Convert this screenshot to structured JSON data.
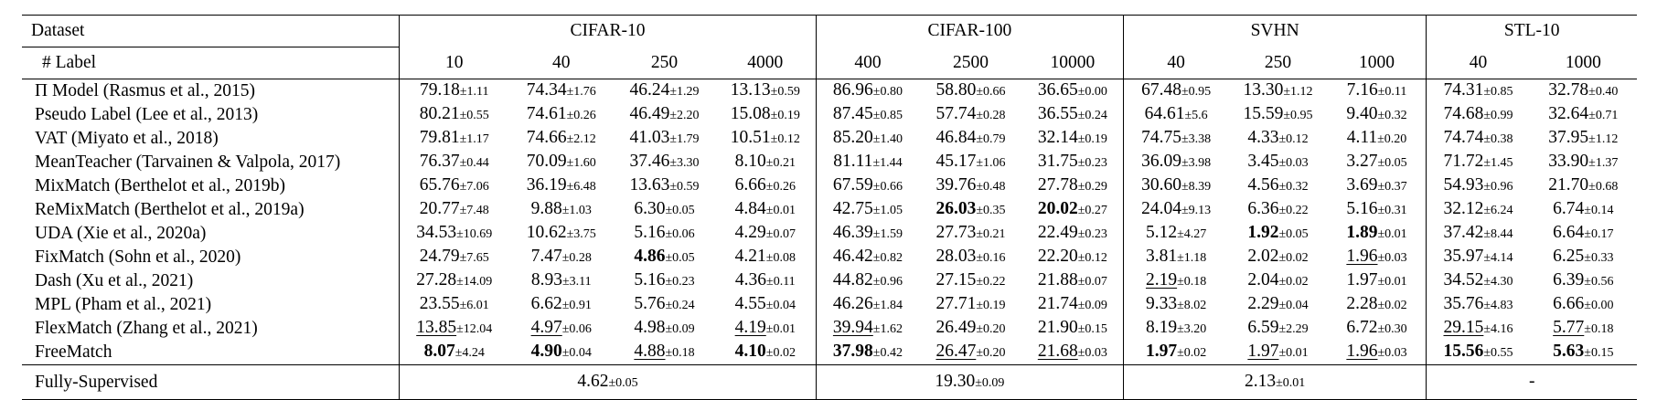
{
  "table": {
    "header_dataset": "Dataset",
    "header_label": "# Label",
    "datasets": [
      {
        "name": "CIFAR-10",
        "labels": [
          "10",
          "40",
          "250",
          "4000"
        ],
        "fully_supervised": {
          "v": "4.62",
          "s": "±0.05"
        }
      },
      {
        "name": "CIFAR-100",
        "labels": [
          "400",
          "2500",
          "10000"
        ],
        "fully_supervised": {
          "v": "19.30",
          "s": "±0.09"
        }
      },
      {
        "name": "SVHN",
        "labels": [
          "40",
          "250",
          "1000"
        ],
        "fully_supervised": {
          "v": "2.13",
          "s": "±0.01"
        }
      },
      {
        "name": "STL-10",
        "labels": [
          "40",
          "1000"
        ],
        "fully_supervised": {
          "v": "-",
          "s": ""
        }
      }
    ],
    "fully_supervised_label": "Fully-Supervised",
    "rows": [
      {
        "method": "Π Model (Rasmus et al., 2015)",
        "cells": [
          {
            "v": "79.18",
            "s": "±1.11"
          },
          {
            "v": "74.34",
            "s": "±1.76"
          },
          {
            "v": "46.24",
            "s": "±1.29"
          },
          {
            "v": "13.13",
            "s": "±0.59"
          },
          {
            "v": "86.96",
            "s": "±0.80"
          },
          {
            "v": "58.80",
            "s": "±0.66"
          },
          {
            "v": "36.65",
            "s": "±0.00"
          },
          {
            "v": "67.48",
            "s": "±0.95"
          },
          {
            "v": "13.30",
            "s": "±1.12"
          },
          {
            "v": "7.16",
            "s": "±0.11"
          },
          {
            "v": "74.31",
            "s": "±0.85"
          },
          {
            "v": "32.78",
            "s": "±0.40"
          }
        ]
      },
      {
        "method": "Pseudo Label (Lee et al., 2013)",
        "cells": [
          {
            "v": "80.21",
            "s": "±0.55"
          },
          {
            "v": "74.61",
            "s": "±0.26"
          },
          {
            "v": "46.49",
            "s": "±2.20"
          },
          {
            "v": "15.08",
            "s": "±0.19"
          },
          {
            "v": "87.45",
            "s": "±0.85"
          },
          {
            "v": "57.74",
            "s": "±0.28"
          },
          {
            "v": "36.55",
            "s": "±0.24"
          },
          {
            "v": "64.61",
            "s": "±5.6"
          },
          {
            "v": "15.59",
            "s": "±0.95"
          },
          {
            "v": "9.40",
            "s": "±0.32"
          },
          {
            "v": "74.68",
            "s": "±0.99"
          },
          {
            "v": "32.64",
            "s": "±0.71"
          }
        ]
      },
      {
        "method": "VAT (Miyato et al., 2018)",
        "cells": [
          {
            "v": "79.81",
            "s": "±1.17"
          },
          {
            "v": "74.66",
            "s": "±2.12"
          },
          {
            "v": "41.03",
            "s": "±1.79"
          },
          {
            "v": "10.51",
            "s": "±0.12"
          },
          {
            "v": "85.20",
            "s": "±1.40"
          },
          {
            "v": "46.84",
            "s": "±0.79"
          },
          {
            "v": "32.14",
            "s": "±0.19"
          },
          {
            "v": "74.75",
            "s": "±3.38"
          },
          {
            "v": "4.33",
            "s": "±0.12"
          },
          {
            "v": "4.11",
            "s": "±0.20"
          },
          {
            "v": "74.74",
            "s": "±0.38"
          },
          {
            "v": "37.95",
            "s": "±1.12"
          }
        ]
      },
      {
        "method": "MeanTeacher (Tarvainen & Valpola, 2017)",
        "cells": [
          {
            "v": "76.37",
            "s": "±0.44"
          },
          {
            "v": "70.09",
            "s": "±1.60"
          },
          {
            "v": "37.46",
            "s": "±3.30"
          },
          {
            "v": "8.10",
            "s": "±0.21"
          },
          {
            "v": "81.11",
            "s": "±1.44"
          },
          {
            "v": "45.17",
            "s": "±1.06"
          },
          {
            "v": "31.75",
            "s": "±0.23"
          },
          {
            "v": "36.09",
            "s": "±3.98"
          },
          {
            "v": "3.45",
            "s": "±0.03"
          },
          {
            "v": "3.27",
            "s": "±0.05"
          },
          {
            "v": "71.72",
            "s": "±1.45"
          },
          {
            "v": "33.90",
            "s": "±1.37"
          }
        ]
      },
      {
        "method": "MixMatch (Berthelot et al., 2019b)",
        "cells": [
          {
            "v": "65.76",
            "s": "±7.06"
          },
          {
            "v": "36.19",
            "s": "±6.48"
          },
          {
            "v": "13.63",
            "s": "±0.59"
          },
          {
            "v": "6.66",
            "s": "±0.26"
          },
          {
            "v": "67.59",
            "s": "±0.66"
          },
          {
            "v": "39.76",
            "s": "±0.48"
          },
          {
            "v": "27.78",
            "s": "±0.29"
          },
          {
            "v": "30.60",
            "s": "±8.39"
          },
          {
            "v": "4.56",
            "s": "±0.32"
          },
          {
            "v": "3.69",
            "s": "±0.37"
          },
          {
            "v": "54.93",
            "s": "±0.96"
          },
          {
            "v": "21.70",
            "s": "±0.68"
          }
        ]
      },
      {
        "method": "ReMixMatch (Berthelot et al., 2019a)",
        "cells": [
          {
            "v": "20.77",
            "s": "±7.48"
          },
          {
            "v": "9.88",
            "s": "±1.03"
          },
          {
            "v": "6.30",
            "s": "±0.05"
          },
          {
            "v": "4.84",
            "s": "±0.01"
          },
          {
            "v": "42.75",
            "s": "±1.05"
          },
          {
            "v": "26.03",
            "s": "±0.35",
            "b": true
          },
          {
            "v": "20.02",
            "s": "±0.27",
            "b": true
          },
          {
            "v": "24.04",
            "s": "±9.13"
          },
          {
            "v": "6.36",
            "s": "±0.22"
          },
          {
            "v": "5.16",
            "s": "±0.31"
          },
          {
            "v": "32.12",
            "s": "±6.24"
          },
          {
            "v": "6.74",
            "s": "±0.14"
          }
        ]
      },
      {
        "method": "UDA (Xie et al., 2020a)",
        "cells": [
          {
            "v": "34.53",
            "s": "±10.69"
          },
          {
            "v": "10.62",
            "s": "±3.75"
          },
          {
            "v": "5.16",
            "s": "±0.06"
          },
          {
            "v": "4.29",
            "s": "±0.07"
          },
          {
            "v": "46.39",
            "s": "±1.59"
          },
          {
            "v": "27.73",
            "s": "±0.21"
          },
          {
            "v": "22.49",
            "s": "±0.23"
          },
          {
            "v": "5.12",
            "s": "±4.27"
          },
          {
            "v": "1.92",
            "s": "±0.05",
            "b": true
          },
          {
            "v": "1.89",
            "s": "±0.01",
            "b": true
          },
          {
            "v": "37.42",
            "s": "±8.44"
          },
          {
            "v": "6.64",
            "s": "±0.17"
          }
        ]
      },
      {
        "method": "FixMatch (Sohn et al., 2020)",
        "cells": [
          {
            "v": "24.79",
            "s": "±7.65"
          },
          {
            "v": "7.47",
            "s": "±0.28"
          },
          {
            "v": "4.86",
            "s": "±0.05",
            "b": true
          },
          {
            "v": "4.21",
            "s": "±0.08"
          },
          {
            "v": "46.42",
            "s": "±0.82"
          },
          {
            "v": "28.03",
            "s": "±0.16"
          },
          {
            "v": "22.20",
            "s": "±0.12"
          },
          {
            "v": "3.81",
            "s": "±1.18"
          },
          {
            "v": "2.02",
            "s": "±0.02"
          },
          {
            "v": "1.96",
            "s": "±0.03",
            "u": true
          },
          {
            "v": "35.97",
            "s": "±4.14"
          },
          {
            "v": "6.25",
            "s": "±0.33"
          }
        ]
      },
      {
        "method": "Dash (Xu et al., 2021)",
        "cells": [
          {
            "v": "27.28",
            "s": "±14.09"
          },
          {
            "v": "8.93",
            "s": "±3.11"
          },
          {
            "v": "5.16",
            "s": "±0.23"
          },
          {
            "v": "4.36",
            "s": "±0.11"
          },
          {
            "v": "44.82",
            "s": "±0.96"
          },
          {
            "v": "27.15",
            "s": "±0.22"
          },
          {
            "v": "21.88",
            "s": "±0.07"
          },
          {
            "v": "2.19",
            "s": "±0.18",
            "u": true
          },
          {
            "v": "2.04",
            "s": "±0.02"
          },
          {
            "v": "1.97",
            "s": "±0.01"
          },
          {
            "v": "34.52",
            "s": "±4.30"
          },
          {
            "v": "6.39",
            "s": "±0.56"
          }
        ]
      },
      {
        "method": "MPL (Pham et al., 2021)",
        "cells": [
          {
            "v": "23.55",
            "s": "±6.01"
          },
          {
            "v": "6.62",
            "s": "±0.91"
          },
          {
            "v": "5.76",
            "s": "±0.24"
          },
          {
            "v": "4.55",
            "s": "±0.04"
          },
          {
            "v": "46.26",
            "s": "±1.84"
          },
          {
            "v": "27.71",
            "s": "±0.19"
          },
          {
            "v": "21.74",
            "s": "±0.09"
          },
          {
            "v": "9.33",
            "s": "±8.02"
          },
          {
            "v": "2.29",
            "s": "±0.04"
          },
          {
            "v": "2.28",
            "s": "±0.02"
          },
          {
            "v": "35.76",
            "s": "±4.83"
          },
          {
            "v": "6.66",
            "s": "±0.00"
          }
        ]
      },
      {
        "method": "FlexMatch (Zhang et al., 2021)",
        "cells": [
          {
            "v": "13.85",
            "s": "±12.04",
            "u": true
          },
          {
            "v": "4.97",
            "s": "±0.06",
            "u": true
          },
          {
            "v": "4.98",
            "s": "±0.09"
          },
          {
            "v": "4.19",
            "s": "±0.01",
            "u": true
          },
          {
            "v": "39.94",
            "s": "±1.62",
            "u": true
          },
          {
            "v": "26.49",
            "s": "±0.20"
          },
          {
            "v": "21.90",
            "s": "±0.15"
          },
          {
            "v": "8.19",
            "s": "±3.20"
          },
          {
            "v": "6.59",
            "s": "±2.29"
          },
          {
            "v": "6.72",
            "s": "±0.30"
          },
          {
            "v": "29.15",
            "s": "±4.16",
            "u": true
          },
          {
            "v": "5.77",
            "s": "±0.18",
            "u": true
          }
        ]
      },
      {
        "method": "FreeMatch",
        "cells": [
          {
            "v": "8.07",
            "s": "±4.24",
            "b": true
          },
          {
            "v": "4.90",
            "s": "±0.04",
            "b": true
          },
          {
            "v": "4.88",
            "s": "±0.18",
            "u": true
          },
          {
            "v": "4.10",
            "s": "±0.02",
            "b": true
          },
          {
            "v": "37.98",
            "s": "±0.42",
            "b": true
          },
          {
            "v": "26.47",
            "s": "±0.20",
            "u": true
          },
          {
            "v": "21.68",
            "s": "±0.03",
            "u": true
          },
          {
            "v": "1.97",
            "s": "±0.02",
            "b": true
          },
          {
            "v": "1.97",
            "s": "±0.01",
            "u": true
          },
          {
            "v": "1.96",
            "s": "±0.03",
            "u": true
          },
          {
            "v": "15.56",
            "s": "±0.55",
            "b": true
          },
          {
            "v": "5.63",
            "s": "±0.15",
            "b": true
          }
        ]
      }
    ]
  }
}
